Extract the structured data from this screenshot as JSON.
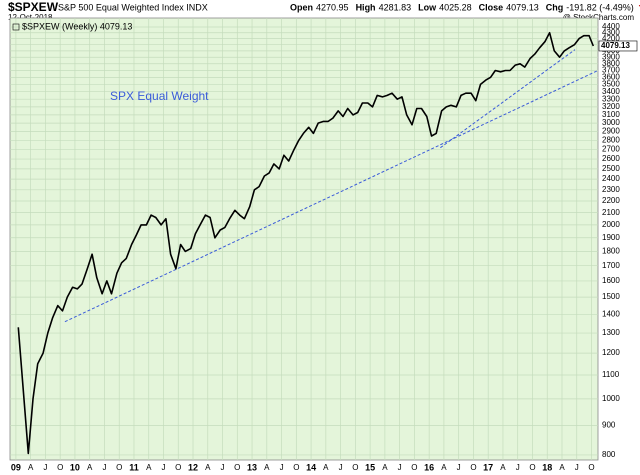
{
  "chart_data": {
    "type": "line",
    "title": "$SPXEW",
    "subtitle": "S&P 500 Equal Weighted Index INDX",
    "date": "12-Oct-2018",
    "source": "@ StockCharts.com",
    "quote": [
      {
        "label": "Open",
        "value": "4270.95"
      },
      {
        "label": "High",
        "value": "4281.83"
      },
      {
        "label": "Low",
        "value": "4025.28"
      },
      {
        "label": "Close",
        "value": "4079.13"
      },
      {
        "label": "Chg",
        "value": "-191.82 (-4.49%)"
      }
    ],
    "annotation": "SPX Equal Weight",
    "price_tag": "4079.13",
    "log_scale": true,
    "grid": true,
    "background": "#e4f5da",
    "xlim": [
      2008.9,
      2018.86
    ],
    "ylim": [
      784,
      4560
    ],
    "xticks": [
      {
        "value": 2009,
        "label": "09"
      },
      {
        "value": 2009.25,
        "label": "A"
      },
      {
        "value": 2009.5,
        "label": "J"
      },
      {
        "value": 2009.75,
        "label": "O"
      },
      {
        "value": 2010,
        "label": "10"
      },
      {
        "value": 2010.25,
        "label": "A"
      },
      {
        "value": 2010.5,
        "label": "J"
      },
      {
        "value": 2010.75,
        "label": "O"
      },
      {
        "value": 2011,
        "label": "11"
      },
      {
        "value": 2011.25,
        "label": "A"
      },
      {
        "value": 2011.5,
        "label": "J"
      },
      {
        "value": 2011.75,
        "label": "O"
      },
      {
        "value": 2012,
        "label": "12"
      },
      {
        "value": 2012.25,
        "label": "A"
      },
      {
        "value": 2012.5,
        "label": "J"
      },
      {
        "value": 2012.75,
        "label": "O"
      },
      {
        "value": 2013,
        "label": "13"
      },
      {
        "value": 2013.25,
        "label": "A"
      },
      {
        "value": 2013.5,
        "label": "J"
      },
      {
        "value": 2013.75,
        "label": "O"
      },
      {
        "value": 2014,
        "label": "14"
      },
      {
        "value": 2014.25,
        "label": "A"
      },
      {
        "value": 2014.5,
        "label": "J"
      },
      {
        "value": 2014.75,
        "label": "O"
      },
      {
        "value": 2015,
        "label": "15"
      },
      {
        "value": 2015.25,
        "label": "A"
      },
      {
        "value": 2015.5,
        "label": "J"
      },
      {
        "value": 2015.75,
        "label": "O"
      },
      {
        "value": 2016,
        "label": "16"
      },
      {
        "value": 2016.25,
        "label": "A"
      },
      {
        "value": 2016.5,
        "label": "J"
      },
      {
        "value": 2016.75,
        "label": "O"
      },
      {
        "value": 2017,
        "label": "17"
      },
      {
        "value": 2017.25,
        "label": "A"
      },
      {
        "value": 2017.5,
        "label": "J"
      },
      {
        "value": 2017.75,
        "label": "O"
      },
      {
        "value": 2018,
        "label": "18"
      },
      {
        "value": 2018.25,
        "label": "A"
      },
      {
        "value": 2018.5,
        "label": "J"
      },
      {
        "value": 2018.75,
        "label": "O"
      }
    ],
    "yticks": [
      800,
      900,
      1000,
      1100,
      1200,
      1300,
      1400,
      1500,
      1600,
      1700,
      1800,
      1900,
      2000,
      2100,
      2200,
      2300,
      2400,
      2500,
      2600,
      2700,
      2800,
      2900,
      3000,
      3100,
      3200,
      3300,
      3400,
      3500,
      3600,
      3700,
      3800,
      3900,
      4000,
      4100,
      4200,
      4300,
      4400
    ],
    "series": [
      {
        "name": "$SPXEW (Weekly) 4079.13",
        "color": "#000000",
        "x": [
          2009.04,
          2009.12,
          2009.21,
          2009.29,
          2009.37,
          2009.46,
          2009.54,
          2009.62,
          2009.71,
          2009.79,
          2009.87,
          2009.96,
          2010.04,
          2010.12,
          2010.21,
          2010.29,
          2010.37,
          2010.46,
          2010.54,
          2010.62,
          2010.71,
          2010.79,
          2010.87,
          2010.96,
          2011.04,
          2011.12,
          2011.21,
          2011.29,
          2011.37,
          2011.46,
          2011.54,
          2011.62,
          2011.71,
          2011.79,
          2011.87,
          2011.96,
          2012.04,
          2012.12,
          2012.21,
          2012.29,
          2012.37,
          2012.46,
          2012.54,
          2012.62,
          2012.71,
          2012.79,
          2012.87,
          2012.96,
          2013.04,
          2013.12,
          2013.21,
          2013.29,
          2013.37,
          2013.46,
          2013.54,
          2013.62,
          2013.71,
          2013.79,
          2013.87,
          2013.96,
          2014.04,
          2014.12,
          2014.21,
          2014.29,
          2014.37,
          2014.46,
          2014.54,
          2014.62,
          2014.71,
          2014.79,
          2014.87,
          2014.96,
          2015.04,
          2015.12,
          2015.21,
          2015.29,
          2015.37,
          2015.46,
          2015.54,
          2015.62,
          2015.71,
          2015.79,
          2015.87,
          2015.96,
          2016.04,
          2016.12,
          2016.21,
          2016.29,
          2016.37,
          2016.46,
          2016.54,
          2016.62,
          2016.71,
          2016.79,
          2016.87,
          2016.96,
          2017.04,
          2017.12,
          2017.21,
          2017.29,
          2017.37,
          2017.46,
          2017.54,
          2017.62,
          2017.71,
          2017.79,
          2017.87,
          2017.96,
          2018.04,
          2018.12,
          2018.21,
          2018.29,
          2018.37,
          2018.46,
          2018.54,
          2018.62,
          2018.71,
          2018.78
        ],
        "values": [
          1330,
          1050,
          805,
          1000,
          1150,
          1200,
          1300,
          1380,
          1450,
          1420,
          1500,
          1560,
          1550,
          1580,
          1680,
          1780,
          1620,
          1520,
          1600,
          1520,
          1650,
          1720,
          1750,
          1850,
          1920,
          2000,
          2000,
          2080,
          2060,
          2000,
          2050,
          1780,
          1680,
          1850,
          1800,
          1820,
          1930,
          2000,
          2080,
          2060,
          1900,
          1960,
          1980,
          2050,
          2120,
          2080,
          2050,
          2150,
          2300,
          2330,
          2430,
          2460,
          2550,
          2500,
          2640,
          2580,
          2700,
          2800,
          2880,
          2950,
          2880,
          3000,
          3020,
          3020,
          3060,
          3150,
          3080,
          3180,
          3100,
          3130,
          3250,
          3250,
          3200,
          3350,
          3330,
          3350,
          3380,
          3300,
          3330,
          3100,
          2980,
          3180,
          3180,
          3080,
          2850,
          2880,
          3150,
          3200,
          3220,
          3200,
          3350,
          3380,
          3380,
          3280,
          3500,
          3560,
          3600,
          3700,
          3680,
          3700,
          3700,
          3780,
          3800,
          3750,
          3880,
          3950,
          4050,
          4150,
          4300,
          4000,
          3900,
          4000,
          4050,
          4100,
          4200,
          4250,
          4250,
          4079.13
        ]
      }
    ],
    "trendlines": [
      {
        "color": "#3a5bd9",
        "x": [
          2009.83,
          2018.86
        ],
        "y": [
          1360,
          3700
        ]
      },
      {
        "color": "#3a5bd9",
        "x": [
          2016.19,
          2018.47
        ],
        "y": [
          2720,
          4020
        ]
      }
    ]
  }
}
